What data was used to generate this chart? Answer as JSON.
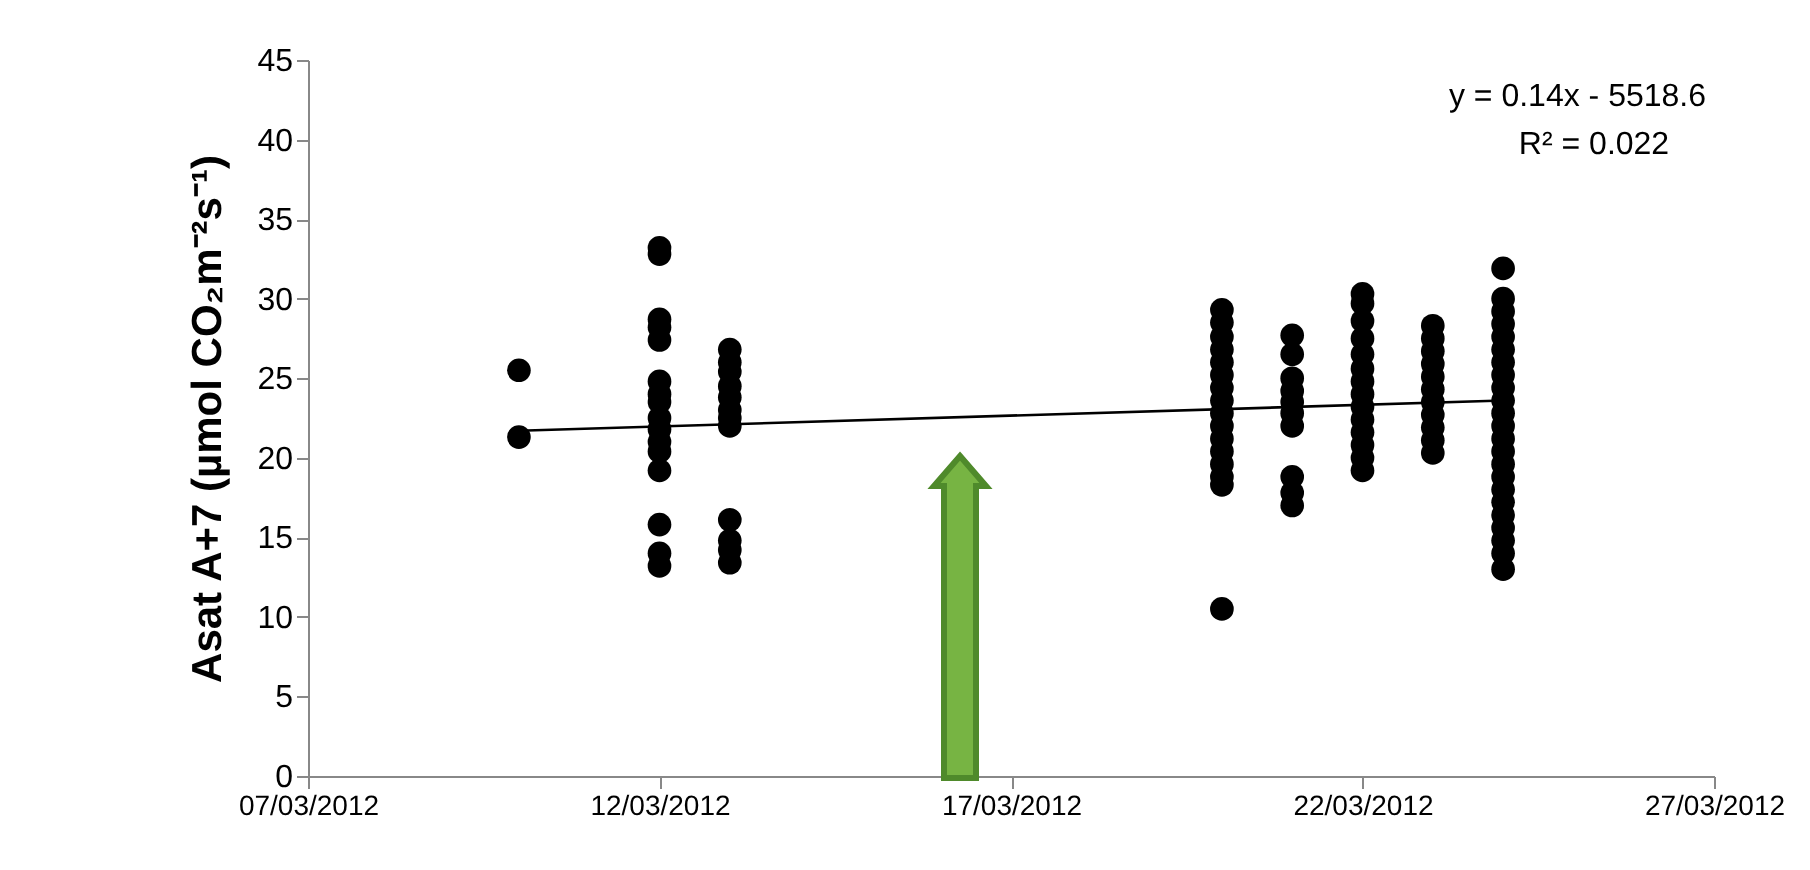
{
  "chart_data": {
    "type": "scatter",
    "ylabel": "Asat A+7 (µmol CO₂m⁻²s⁻¹)",
    "annotations": [
      "y = 0.14x - 5518.6",
      "R² = 0.022"
    ],
    "xlim": [
      "2012-03-07",
      "2012-03-27"
    ],
    "xticks": [
      {
        "value": "2012-03-07",
        "label": "07/03/2012"
      },
      {
        "value": "2012-03-12",
        "label": "12/03/2012"
      },
      {
        "value": "2012-03-17",
        "label": "17/03/2012"
      },
      {
        "value": "2012-03-22",
        "label": "22/03/2012"
      },
      {
        "value": "2012-03-27",
        "label": "27/03/2012"
      }
    ],
    "ylim": [
      0,
      45
    ],
    "yticks": [
      0,
      5,
      10,
      15,
      20,
      25,
      30,
      35,
      40,
      45
    ],
    "grid": false,
    "legend": false,
    "marker": "circle",
    "series": [
      {
        "type": "scatter",
        "color": "#000000",
        "x": [
          "2012-03-10",
          "2012-03-10",
          "2012-03-12",
          "2012-03-12",
          "2012-03-12",
          "2012-03-12",
          "2012-03-12",
          "2012-03-12",
          "2012-03-12",
          "2012-03-12",
          "2012-03-12",
          "2012-03-12",
          "2012-03-12",
          "2012-03-12",
          "2012-03-12",
          "2012-03-12",
          "2012-03-12",
          "2012-03-12",
          "2012-03-13",
          "2012-03-13",
          "2012-03-13",
          "2012-03-13",
          "2012-03-13",
          "2012-03-13",
          "2012-03-13",
          "2012-03-13",
          "2012-03-13",
          "2012-03-13",
          "2012-03-13",
          "2012-03-13",
          "2012-03-20",
          "2012-03-20",
          "2012-03-20",
          "2012-03-20",
          "2012-03-20",
          "2012-03-20",
          "2012-03-20",
          "2012-03-20",
          "2012-03-20",
          "2012-03-20",
          "2012-03-20",
          "2012-03-20",
          "2012-03-20",
          "2012-03-20",
          "2012-03-20",
          "2012-03-20",
          "2012-03-21",
          "2012-03-21",
          "2012-03-21",
          "2012-03-21",
          "2012-03-21",
          "2012-03-21",
          "2012-03-21",
          "2012-03-21",
          "2012-03-21",
          "2012-03-21",
          "2012-03-22",
          "2012-03-22",
          "2012-03-22",
          "2012-03-22",
          "2012-03-22",
          "2012-03-22",
          "2012-03-22",
          "2012-03-22",
          "2012-03-22",
          "2012-03-22",
          "2012-03-22",
          "2012-03-22",
          "2012-03-22",
          "2012-03-22",
          "2012-03-23",
          "2012-03-23",
          "2012-03-23",
          "2012-03-23",
          "2012-03-23",
          "2012-03-23",
          "2012-03-23",
          "2012-03-23",
          "2012-03-23",
          "2012-03-23",
          "2012-03-23",
          "2012-03-24",
          "2012-03-24",
          "2012-03-24",
          "2012-03-24",
          "2012-03-24",
          "2012-03-24",
          "2012-03-24",
          "2012-03-24",
          "2012-03-24",
          "2012-03-24",
          "2012-03-24",
          "2012-03-24",
          "2012-03-24",
          "2012-03-24",
          "2012-03-24",
          "2012-03-24",
          "2012-03-24",
          "2012-03-24",
          "2012-03-24",
          "2012-03-24",
          "2012-03-24",
          "2012-03-24",
          "2012-03-24"
        ],
        "values": [
          25.5,
          21.3,
          33.2,
          32.8,
          28.7,
          28.2,
          27.4,
          24.8,
          24.0,
          23.5,
          22.5,
          21.8,
          21.0,
          20.4,
          19.2,
          15.8,
          14.0,
          13.2,
          26.8,
          26.0,
          25.4,
          24.5,
          23.8,
          23.0,
          22.5,
          22.0,
          16.1,
          14.8,
          14.2,
          13.4,
          29.3,
          28.5,
          27.6,
          26.8,
          26.0,
          25.2,
          24.4,
          23.6,
          22.8,
          22.0,
          21.2,
          20.4,
          19.6,
          18.8,
          18.3,
          10.5,
          27.7,
          26.5,
          25.0,
          24.2,
          23.5,
          22.8,
          22.0,
          18.8,
          17.8,
          17.0,
          30.3,
          29.7,
          28.6,
          27.5,
          26.5,
          25.6,
          24.8,
          24.0,
          23.2,
          22.4,
          21.6,
          20.8,
          20.0,
          19.2,
          28.3,
          27.5,
          26.7,
          25.9,
          25.1,
          24.3,
          23.5,
          22.7,
          21.9,
          21.1,
          20.3,
          31.9,
          30.0,
          29.2,
          28.4,
          27.6,
          26.8,
          26.0,
          25.2,
          24.4,
          23.6,
          22.8,
          22.0,
          21.2,
          20.4,
          19.6,
          18.8,
          18.0,
          17.2,
          16.4,
          15.6,
          14.8,
          14.0,
          13.0
        ]
      },
      {
        "type": "line",
        "color": "#000000",
        "marker": "none",
        "x": [
          "2012-03-10",
          "2012-03-24"
        ],
        "values": [
          21.7,
          23.6
        ]
      }
    ]
  }
}
